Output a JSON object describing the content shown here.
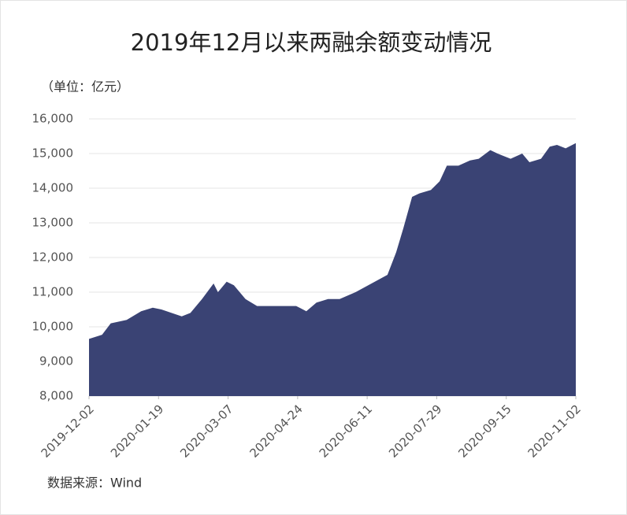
{
  "chart_data": {
    "type": "area",
    "title": "2019年12月以来两融余额变动情况",
    "unit_label": "（单位：亿元）",
    "source": "数据来源：Wind",
    "color": "#3a4374",
    "grid": true,
    "x": [
      "2019-12-02",
      "2019-12-11",
      "2019-12-17",
      "2019-12-28",
      "2020-01-07",
      "2020-01-15",
      "2020-01-21",
      "2020-02-04",
      "2020-02-10",
      "2020-02-18",
      "2020-02-26",
      "2020-02-29",
      "2020-03-06",
      "2020-03-11",
      "2020-03-19",
      "2020-03-27",
      "2020-04-04",
      "2020-04-15",
      "2020-04-23",
      "2020-04-30",
      "2020-05-07",
      "2020-05-15",
      "2020-05-23",
      "2020-06-03",
      "2020-06-14",
      "2020-06-25",
      "2020-07-01",
      "2020-07-06",
      "2020-07-12",
      "2020-07-17",
      "2020-07-25",
      "2020-07-31",
      "2020-08-05",
      "2020-08-13",
      "2020-08-21",
      "2020-08-27",
      "2020-09-04",
      "2020-09-09",
      "2020-09-18",
      "2020-09-26",
      "2020-10-01",
      "2020-10-09",
      "2020-10-15",
      "2020-10-20",
      "2020-10-26",
      "2020-11-02"
    ],
    "series": [
      {
        "values": [
          9650,
          9770,
          10100,
          10200,
          10450,
          10550,
          10500,
          10300,
          10400,
          10800,
          11250,
          11000,
          11300,
          11200,
          10800,
          10600,
          10600,
          10600,
          10600,
          10450,
          10700,
          10800,
          10800,
          11000,
          11250,
          11500,
          12150,
          12850,
          13750,
          13850,
          13950,
          14200,
          14650,
          14650,
          14800,
          14850,
          15100,
          15000,
          14850,
          15000,
          14750,
          14850,
          15200,
          15250,
          15150,
          15300
        ]
      }
    ],
    "xlim": [
      "2019-12-02",
      "2020-11-02"
    ],
    "xticks": [
      "2019-12-02",
      "2020-01-19",
      "2020-03-07",
      "2020-04-24",
      "2020-06-11",
      "2020-07-29",
      "2020-09-15",
      "2020-11-02"
    ],
    "ylim": [
      8000,
      16000
    ],
    "yticks": [
      {
        "value": 8000,
        "label": "8,000"
      },
      {
        "value": 9000,
        "label": "9,000"
      },
      {
        "value": 10000,
        "label": "10,000"
      },
      {
        "value": 11000,
        "label": "11,000"
      },
      {
        "value": 12000,
        "label": "12,000"
      },
      {
        "value": 13000,
        "label": "13,000"
      },
      {
        "value": 14000,
        "label": "14,000"
      },
      {
        "value": 15000,
        "label": "15,000"
      },
      {
        "value": 16000,
        "label": "16,000"
      }
    ]
  }
}
